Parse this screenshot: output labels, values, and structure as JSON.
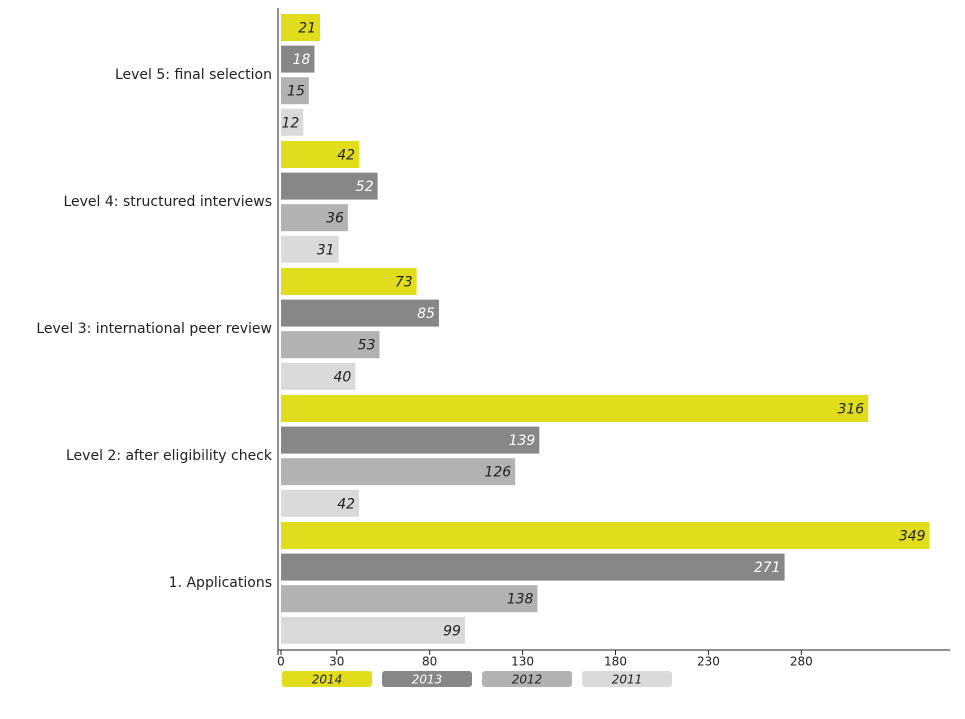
{
  "chart_data": {
    "type": "bar",
    "orientation": "horizontal",
    "categories": [
      "Level 5:  final selection",
      "Level 4: structured interviews",
      "Level 3: international peer review",
      "Level 2: after eligibility check",
      "1. Applications"
    ],
    "series": [
      {
        "name": "2014",
        "color": "#e2dd1c",
        "values": [
          21,
          42,
          73,
          316,
          349
        ]
      },
      {
        "name": "2013",
        "color": "#878787",
        "values": [
          18,
          52,
          85,
          139,
          271
        ]
      },
      {
        "name": "2012",
        "color": "#b2b2b2",
        "values": [
          15,
          36,
          53,
          126,
          138
        ]
      },
      {
        "name": "2011",
        "color": "#dadada",
        "values": [
          12,
          31,
          40,
          42,
          99
        ]
      }
    ],
    "xlim": [
      0,
      360
    ],
    "xticks": [
      0,
      30,
      80,
      130,
      180,
      230,
      280
    ],
    "grid": false
  }
}
